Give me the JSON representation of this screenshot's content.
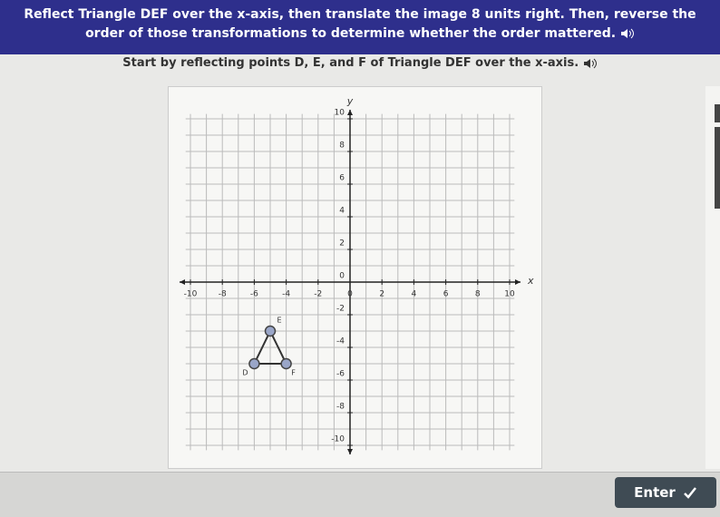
{
  "header": {
    "title": "Reflect Triangle DEF over the x-axis, then translate the image 8 units right. Then, reverse the order of those transformations to determine whether the order mattered."
  },
  "instruction": "Start by reflecting points D, E, and F of Triangle DEF over the x-axis.",
  "graph": {
    "x_label": "x",
    "y_label": "y",
    "xlim": [
      -10,
      10
    ],
    "ylim": [
      -10,
      10
    ],
    "xticks": [
      -10,
      -8,
      -6,
      -4,
      -2,
      0,
      2,
      4,
      6,
      8,
      10
    ],
    "yticks": [
      -10,
      -8,
      -6,
      -4,
      -2,
      0,
      2,
      4,
      6,
      8,
      10
    ],
    "points": [
      {
        "label": "D",
        "x": -6,
        "y": -5
      },
      {
        "label": "E",
        "x": -5,
        "y": -3
      },
      {
        "label": "F",
        "x": -4,
        "y": -5
      }
    ]
  },
  "button": {
    "label": "Enter"
  }
}
